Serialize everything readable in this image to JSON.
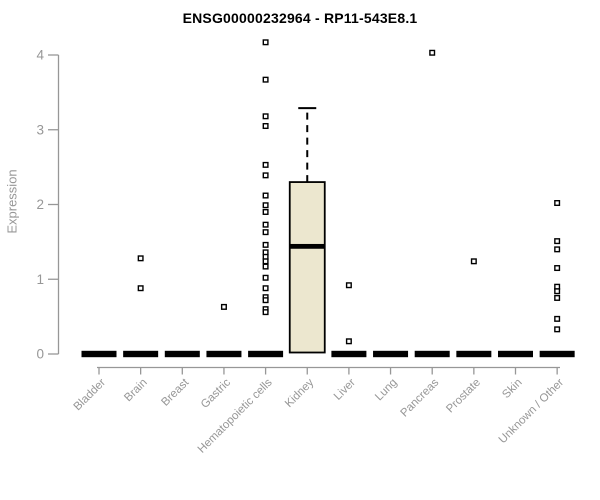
{
  "title": "ENSG00000232964 - RP11-543E8.1",
  "y_axis": {
    "label": "Expression",
    "ticks": [
      "0",
      "1",
      "2",
      "3",
      "4"
    ]
  },
  "chart_data": {
    "type": "boxplot-scatter",
    "title": "ENSG00000232964 - RP11-543E8.1",
    "xlabel": "",
    "ylabel": "Expression",
    "ylim": [
      0,
      4.3
    ],
    "yticks": [
      0,
      1,
      2,
      3,
      4
    ],
    "grid": false,
    "legend": false,
    "categories": [
      "Bladder",
      "Brain",
      "Breast",
      "Gastric",
      "Hematopoietic cells",
      "Kidney",
      "Liver",
      "Lung",
      "Pancreas",
      "Prostate",
      "Skin",
      "Unknown / Other"
    ],
    "series": [
      {
        "category": "Bladder",
        "zero_bar": true,
        "points": []
      },
      {
        "category": "Brain",
        "zero_bar": true,
        "points": [
          1.28,
          0.88
        ]
      },
      {
        "category": "Breast",
        "zero_bar": true,
        "points": []
      },
      {
        "category": "Gastric",
        "zero_bar": true,
        "points": [
          0.63
        ]
      },
      {
        "category": "Hematopoietic cells",
        "zero_bar": true,
        "points": [
          4.17,
          3.67,
          3.18,
          3.05,
          2.53,
          2.39,
          2.12,
          1.99,
          1.9,
          1.73,
          1.63,
          1.46,
          1.36,
          1.3,
          1.24,
          1.17,
          1.02,
          0.88,
          0.76,
          0.72,
          0.6,
          0.56
        ]
      },
      {
        "category": "Kidney",
        "zero_bar": false,
        "points": [],
        "box": {
          "lower": 0.02,
          "q1": 0.02,
          "median": 1.44,
          "q3": 2.3,
          "upper_whisker": 3.29
        }
      },
      {
        "category": "Liver",
        "zero_bar": true,
        "points": [
          0.92,
          0.17
        ]
      },
      {
        "category": "Lung",
        "zero_bar": true,
        "points": []
      },
      {
        "category": "Pancreas",
        "zero_bar": true,
        "points": [
          4.03
        ]
      },
      {
        "category": "Prostate",
        "zero_bar": true,
        "points": [
          1.24
        ]
      },
      {
        "category": "Skin",
        "zero_bar": true,
        "points": []
      },
      {
        "category": "Unknown / Other",
        "zero_bar": true,
        "points": [
          2.02,
          1.51,
          1.4,
          1.15,
          0.9,
          0.84,
          0.75,
          0.47,
          0.33
        ]
      }
    ],
    "colors": {
      "box_fill": "#ECE7CF",
      "box_stroke": "#000000",
      "median": "#000000",
      "zero_bar": "#000000",
      "point_stroke": "#000000",
      "point_fill": "#ffffff",
      "axis": "#979797",
      "tick_label": "#979797",
      "title": "#000000"
    }
  }
}
